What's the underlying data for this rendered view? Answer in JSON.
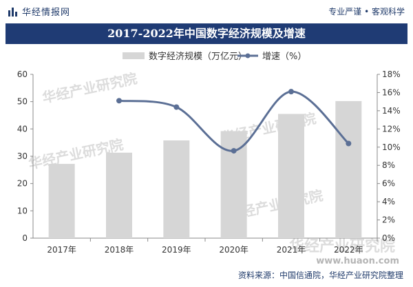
{
  "header": {
    "brand": "华经情报网",
    "slogan": "专业严谨 • 客观科学"
  },
  "watermarks": [
    "华经产业研究院",
    "华经产业研究院",
    "华经产业研究院",
    "华经产业研究院",
    "华经产业研究院"
  ],
  "site": "www.huaon.com",
  "footer": {
    "source": "资料来源：中国信通院，华经产业研究院整理"
  },
  "colors": {
    "title_bg": "#1f3b74",
    "bar": "#d6d6d6",
    "line": "#5b6f95"
  },
  "chart_data": {
    "type": "bar",
    "title": "2017-2022年中国数字经济规模及增速",
    "categories": [
      "2017年",
      "2018年",
      "2019年",
      "2020年",
      "2021年",
      "2022年"
    ],
    "series": [
      {
        "name": "数字经济规模（万亿元）",
        "type": "bar",
        "axis": "left",
        "values": [
          27.2,
          31.3,
          35.8,
          39.2,
          45.5,
          50.2
        ]
      },
      {
        "name": "增速（%）",
        "type": "line",
        "axis": "right",
        "values": [
          null,
          15.1,
          14.4,
          9.6,
          16.1,
          10.4
        ]
      }
    ],
    "y_left": {
      "min": 0,
      "max": 60,
      "ticks": [
        "0",
        "10",
        "20",
        "30",
        "40",
        "50",
        "60"
      ]
    },
    "y_right": {
      "min": 0,
      "max": 18,
      "ticks": [
        "0%",
        "2%",
        "4%",
        "6%",
        "8%",
        "10%",
        "12%",
        "14%",
        "16%",
        "18%"
      ]
    },
    "legend_position": "top-center",
    "grid": false
  }
}
